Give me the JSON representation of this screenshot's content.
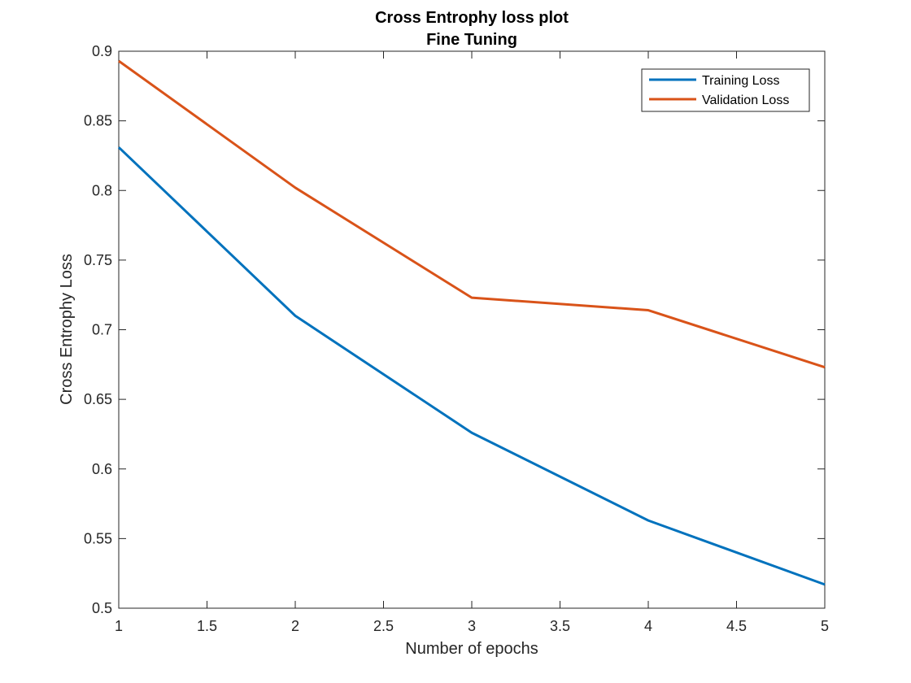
{
  "chart_data": {
    "type": "line",
    "title": "Cross Entrophy loss plot",
    "subtitle": "Fine Tuning",
    "xlabel": "Number of epochs",
    "ylabel": "Cross Entrophy Loss",
    "xlim": [
      1,
      5
    ],
    "ylim": [
      0.5,
      0.9
    ],
    "xticks": [
      1,
      1.5,
      2,
      2.5,
      3,
      3.5,
      4,
      4.5,
      5
    ],
    "xtick_labels": [
      "1",
      "1.5",
      "2",
      "2.5",
      "3",
      "3.5",
      "4",
      "4.5",
      "5"
    ],
    "yticks": [
      0.5,
      0.55,
      0.6,
      0.65,
      0.7,
      0.75,
      0.8,
      0.85,
      0.9
    ],
    "ytick_labels": [
      "0.5",
      "0.55",
      "0.6",
      "0.65",
      "0.7",
      "0.75",
      "0.8",
      "0.85",
      "0.9"
    ],
    "grid": false,
    "legend_position": "top-right",
    "x": [
      1,
      2,
      3,
      4,
      5
    ],
    "series": [
      {
        "name": "Training Loss",
        "color": "#0072BD",
        "values": [
          0.831,
          0.71,
          0.626,
          0.563,
          0.517
        ]
      },
      {
        "name": "Validation Loss",
        "color": "#D95319",
        "values": [
          0.893,
          0.802,
          0.723,
          0.714,
          0.673
        ]
      }
    ]
  }
}
